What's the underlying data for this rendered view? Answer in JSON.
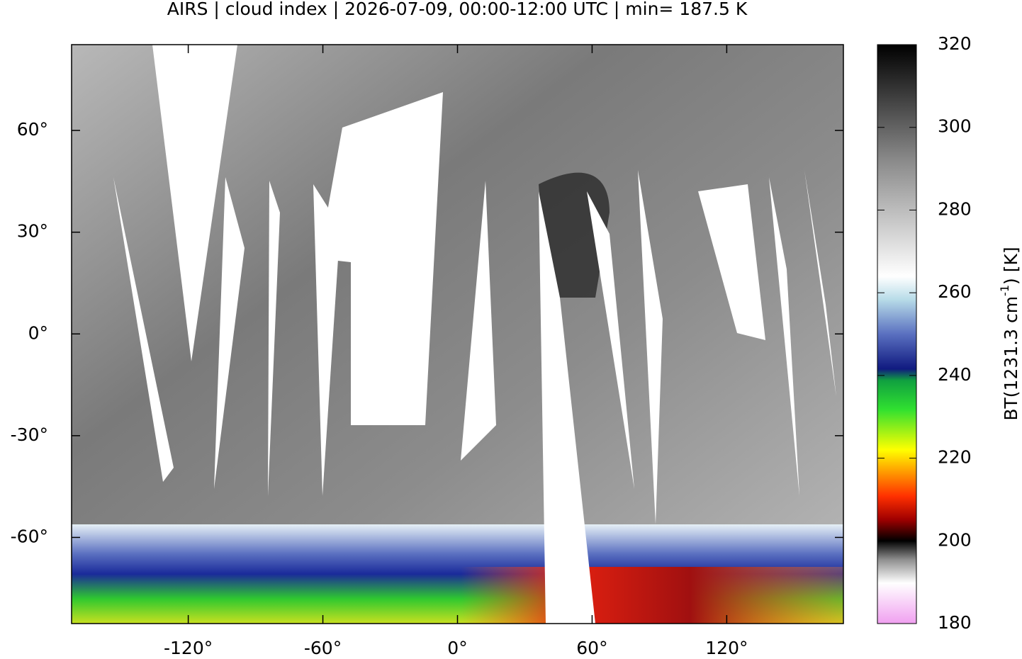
{
  "title": "AIRS | cloud index | 2026-07-09, 00:00-12:00 UTC | min= 187.5 K",
  "map": {
    "xlim": [
      -172,
      172
    ],
    "ylim": [
      -85.4,
      85.3
    ],
    "xticks": [
      {
        "value": -120,
        "label": "-120°"
      },
      {
        "value": -60,
        "label": "-60°"
      },
      {
        "value": 0,
        "label": "0°"
      },
      {
        "value": 60,
        "label": "60°"
      },
      {
        "value": 120,
        "label": "120°"
      }
    ],
    "yticks": [
      {
        "value": 60,
        "label": "60°"
      },
      {
        "value": 30,
        "label": "30°"
      },
      {
        "value": 0,
        "label": "0°"
      },
      {
        "value": -30,
        "label": "-30°"
      },
      {
        "value": -60,
        "label": "-60°"
      }
    ]
  },
  "colorbar": {
    "lim": [
      180,
      320
    ],
    "ticks": [
      180,
      200,
      220,
      240,
      260,
      280,
      300,
      320
    ],
    "label": {
      "prefix": "BT(1231.3 cm",
      "sup": "-1",
      "suffix": ") [K]"
    }
  }
}
